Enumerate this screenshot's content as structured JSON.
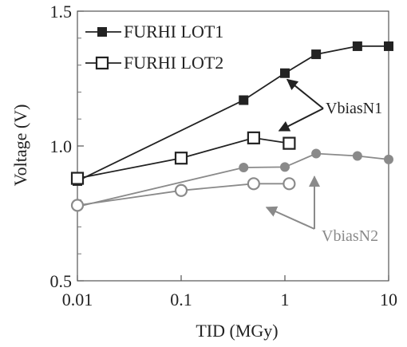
{
  "chart_data": {
    "type": "line",
    "xscale": "log",
    "xlabel": "TID (MGy)",
    "ylabel": "Voltage (V)",
    "xlim": [
      0.01,
      10
    ],
    "ylim": [
      0.5,
      1.5
    ],
    "x_ticks": [
      0.01,
      0.1,
      1,
      10
    ],
    "x_tick_labels": [
      "0.01",
      "0.1",
      "1",
      "10"
    ],
    "y_ticks": [
      0.5,
      1.0,
      1.5
    ],
    "y_tick_labels": [
      "0.5",
      "1.0",
      "1.5"
    ],
    "grid": false,
    "legend_position": "top-left",
    "series": [
      {
        "name": "FURHI LOT1",
        "marker": "filled-square",
        "color": "#222222",
        "points": [
          [
            0.01,
            0.87
          ],
          [
            0.4,
            1.17
          ],
          [
            1,
            1.27
          ],
          [
            2,
            1.34
          ],
          [
            5,
            1.37
          ],
          [
            10,
            1.37
          ]
        ]
      },
      {
        "name": "FURHI LOT2",
        "marker": "open-square",
        "color": "#222222",
        "points": [
          [
            0.01,
            0.88
          ],
          [
            0.1,
            0.955
          ],
          [
            0.5,
            1.03
          ],
          [
            1.1,
            1.01
          ]
        ]
      },
      {
        "name": "",
        "marker": "filled-circle",
        "color": "#8a8a8a",
        "points": [
          [
            0.01,
            0.775
          ],
          [
            0.4,
            0.92
          ],
          [
            1,
            0.922
          ],
          [
            2,
            0.972
          ],
          [
            5,
            0.963
          ],
          [
            10,
            0.95
          ]
        ]
      },
      {
        "name": "",
        "marker": "open-circle",
        "color": "#8a8a8a",
        "points": [
          [
            0.01,
            0.78
          ],
          [
            0.1,
            0.835
          ],
          [
            0.5,
            0.86
          ],
          [
            1.1,
            0.86
          ]
        ]
      }
    ],
    "annotations": [
      {
        "text": "VbiasN1",
        "color": "#222222",
        "points_to_series": [
          0,
          1
        ]
      },
      {
        "text": "VbiasN2",
        "color": "#8a8a8a",
        "points_to_series": [
          2,
          3
        ]
      }
    ]
  }
}
